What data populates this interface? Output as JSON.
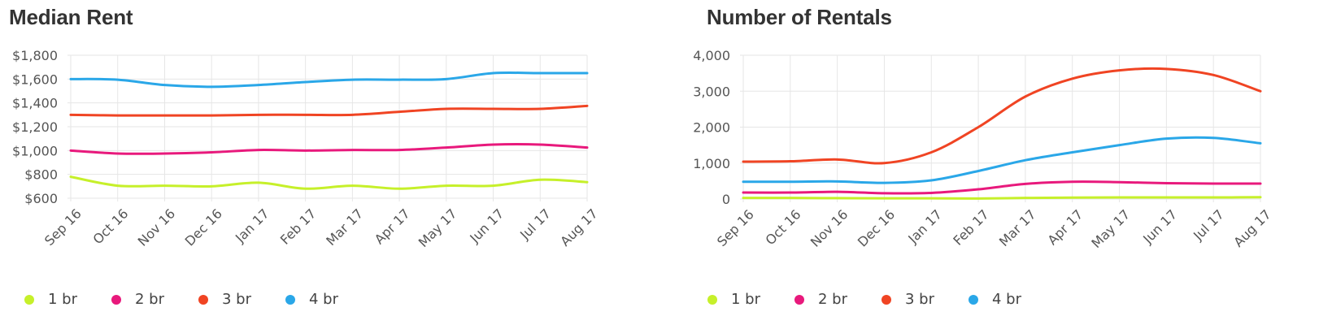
{
  "charts": [
    {
      "title": "Median Rent",
      "chart_data": {
        "type": "line",
        "title": "Median Rent",
        "x": [
          "Sep 16",
          "Oct 16",
          "Nov 16",
          "Dec 16",
          "Jan 17",
          "Feb 17",
          "Mar 17",
          "Apr 17",
          "May 17",
          "Jun 17",
          "Jul 17",
          "Aug 17"
        ],
        "yticks": [
          "$600",
          "$800",
          "$1,000",
          "$1,200",
          "$1,400",
          "$1,600",
          "$1,800"
        ],
        "ylim": [
          600,
          1800
        ],
        "grid": true,
        "legend": "bottom-left",
        "series": [
          {
            "name": "1 br",
            "color": "#c6f02a",
            "values": [
              780,
              705,
              705,
              700,
              730,
              680,
              705,
              680,
              705,
              705,
              755,
              735
            ]
          },
          {
            "name": "2 br",
            "color": "#e8197c",
            "values": [
              1000,
              975,
              975,
              985,
              1005,
              1000,
              1005,
              1005,
              1025,
              1050,
              1050,
              1025
            ]
          },
          {
            "name": "3 br",
            "color": "#f04423",
            "values": [
              1300,
              1295,
              1295,
              1295,
              1300,
              1300,
              1300,
              1325,
              1350,
              1350,
              1350,
              1375
            ]
          },
          {
            "name": "4 br",
            "color": "#2aa7e8",
            "values": [
              1600,
              1595,
              1550,
              1535,
              1550,
              1575,
              1595,
              1595,
              1600,
              1650,
              1650,
              1650
            ]
          }
        ]
      }
    },
    {
      "title": "Number of Rentals",
      "chart_data": {
        "type": "line",
        "title": "Number of Rentals",
        "x": [
          "Sep 16",
          "Oct 16",
          "Nov 16",
          "Dec 16",
          "Jan 17",
          "Feb 17",
          "Mar 17",
          "Apr 17",
          "May 17",
          "Jun 17",
          "Jul 17",
          "Aug 17"
        ],
        "yticks": [
          "0",
          "1,000",
          "2,000",
          "3,000",
          "4,000"
        ],
        "ylim": [
          0,
          4000
        ],
        "grid": true,
        "legend": "bottom-left",
        "series": [
          {
            "name": "1 br",
            "color": "#c6f02a",
            "values": [
              30,
              30,
              25,
              20,
              20,
              15,
              30,
              40,
              45,
              45,
              45,
              50
            ]
          },
          {
            "name": "2 br",
            "color": "#e8197c",
            "values": [
              180,
              180,
              200,
              160,
              170,
              270,
              420,
              480,
              470,
              440,
              430,
              430
            ]
          },
          {
            "name": "3 br",
            "color": "#f04423",
            "values": [
              1040,
              1050,
              1100,
              1000,
              1300,
              2000,
              2850,
              3350,
              3580,
              3620,
              3450,
              3000
            ]
          },
          {
            "name": "4 br",
            "color": "#2aa7e8",
            "values": [
              480,
              480,
              490,
              450,
              520,
              780,
              1080,
              1300,
              1500,
              1680,
              1700,
              1550
            ]
          }
        ]
      }
    }
  ]
}
